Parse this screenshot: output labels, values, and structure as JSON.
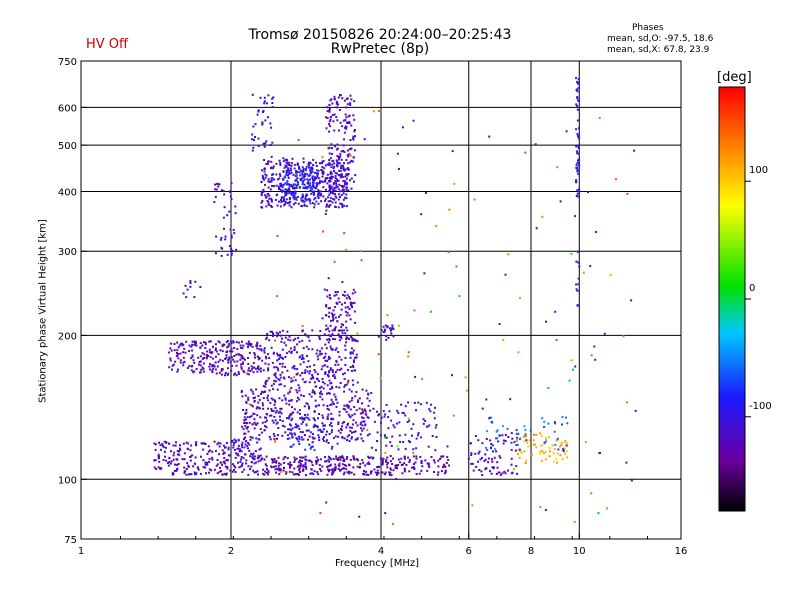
{
  "chart_data": {
    "type": "scatter",
    "title": "Tromsø 20150826 20:24:00–20:25:43",
    "subtitle": "RwPretec (8p)",
    "status": "HV Off",
    "stats": {
      "header": "Phases",
      "o_line": "mean, sd,O: -97.5, 18.6",
      "x_line": "mean, sd,X:  67.8, 23.9"
    },
    "xlabel": "Frequency [MHz]",
    "ylabel": "Stationary phase Virtual Height [km]",
    "x_scale": "log2",
    "y_scale": "log",
    "xlim": [
      1,
      16
    ],
    "ylim": [
      75,
      750
    ],
    "x_ticks": [
      1,
      2,
      4,
      6,
      8,
      10,
      16
    ],
    "y_ticks": [
      75,
      100,
      200,
      300,
      400,
      500,
      600,
      750
    ],
    "grid": true,
    "colorbar": {
      "label": "[deg]",
      "range": [
        -180,
        180
      ],
      "ticks": [
        100,
        0,
        -100
      ],
      "placement": "right"
    },
    "series": [
      {
        "clusters": [
          {
            "f": [
              2.3,
              3.45
            ],
            "h": [
              370,
              470
            ],
            "phase": -110,
            "n": 420
          },
          {
            "f": [
              3.1,
              3.55
            ],
            "h": [
              400,
              640
            ],
            "phase": -115,
            "n": 160
          },
          {
            "f": [
              2.2,
              2.45
            ],
            "h": [
              470,
              640
            ],
            "phase": -105,
            "n": 40
          },
          {
            "f": [
              2.55,
              3.0
            ],
            "h": [
              380,
              450
            ],
            "phase": -85,
            "n": 120
          },
          {
            "f": [
              1.85,
              2.05
            ],
            "h": [
              290,
              420
            ],
            "phase": -115,
            "n": 45
          },
          {
            "f": [
              1.5,
              2.3
            ],
            "h": [
              165,
              195
            ],
            "phase": -120,
            "n": 260
          },
          {
            "f": [
              2.3,
              3.6
            ],
            "h": [
              155,
              205
            ],
            "phase": -115,
            "n": 300
          },
          {
            "f": [
              3.1,
              3.55
            ],
            "h": [
              195,
              250
            ],
            "phase": -120,
            "n": 100
          },
          {
            "f": [
              2.1,
              3.8
            ],
            "h": [
              120,
              155
            ],
            "phase": -120,
            "n": 380
          },
          {
            "f": [
              2.6,
              3.2
            ],
            "h": [
              115,
              135
            ],
            "phase": -85,
            "n": 60
          },
          {
            "f": [
              1.4,
              2.0
            ],
            "h": [
              102,
              120
            ],
            "phase": -120,
            "n": 180
          },
          {
            "f": [
              2.0,
              2.3
            ],
            "h": [
              102,
              122
            ],
            "phase": -110,
            "n": 90
          },
          {
            "f": [
              2.3,
              5.5
            ],
            "h": [
              102,
              112
            ],
            "phase": -125,
            "n": 330
          },
          {
            "f": [
              3.8,
              5.2
            ],
            "h": [
              115,
              145
            ],
            "phase": -110,
            "n": 80
          },
          {
            "f": [
              4.0,
              4.25
            ],
            "h": [
              195,
              210
            ],
            "phase": -115,
            "n": 20
          },
          {
            "f": [
              6.0,
              7.5
            ],
            "h": [
              102,
              125
            ],
            "phase": -120,
            "n": 80
          },
          {
            "f": [
              7.5,
              9.5
            ],
            "h": [
              108,
              125
            ],
            "phase": 110,
            "n": 70
          },
          {
            "f": [
              6.5,
              9.5
            ],
            "h": [
              115,
              135
            ],
            "phase": -60,
            "n": 45
          },
          {
            "f": [
              9.85,
              10.0
            ],
            "h": [
              390,
              700
            ],
            "phase": -95,
            "n": 55
          },
          {
            "f": [
              9.85,
              10.0
            ],
            "h": [
              230,
              300
            ],
            "phase": -95,
            "n": 10
          },
          {
            "f": [
              1.6,
              1.75
            ],
            "h": [
              240,
              260
            ],
            "phase": -120,
            "n": 10
          }
        ],
        "scatter": [
          {
            "f": [
              2.0,
              13.0
            ],
            "h": [
              78,
              600
            ],
            "phase": 140,
            "n": 55
          },
          {
            "f": [
              3.0,
              13.0
            ],
            "h": [
              78,
              600
            ],
            "phase": -110,
            "n": 65
          },
          {
            "f": [
              4.0,
              12.0
            ],
            "h": [
              80,
              300
            ],
            "phase": 20,
            "n": 25
          }
        ]
      }
    ]
  }
}
